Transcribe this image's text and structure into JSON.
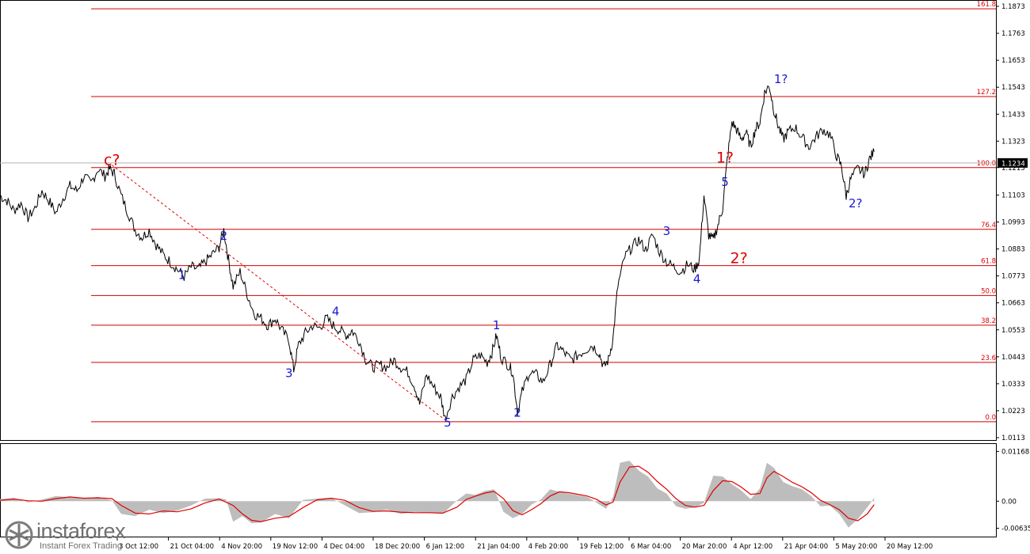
{
  "chart_data": [
    {
      "type": "line",
      "symbol_note": "",
      "current_price_label": "1.1234",
      "y_ticks": [
        "1.1873",
        "1.1763",
        "1.1653",
        "1.1543",
        "1.1433",
        "1.1323",
        "1.1215",
        "1.1103",
        "1.0993",
        "1.0883",
        "1.0773",
        "1.0663",
        "1.0553",
        "1.0443",
        "1.0333",
        "1.0223",
        "1.0113"
      ],
      "ylim": [
        1.0113,
        1.1873
      ],
      "x_ticks": [
        "3 Oct 12:00",
        "21 Oct 04:00",
        "4 Nov 20:00",
        "19 Nov 12:00",
        "4 Dec 04:00",
        "18 Dec 20:00",
        "6 Jan 12:00",
        "21 Jan 04:00",
        "4 Feb 20:00",
        "19 Feb 12:00",
        "6 Mar 04:00",
        "20 Mar 20:00",
        "4 Apr 12:00",
        "21 Apr 04:00",
        "5 May 20:00",
        "20 May 12:00"
      ],
      "fib_levels": [
        {
          "label": "161.8",
          "value": 1.1863
        },
        {
          "label": "127.2",
          "value": 1.1505
        },
        {
          "label": "100.0",
          "value": 1.1215
        },
        {
          "label": "76.4",
          "value": 1.0963
        },
        {
          "label": "61.8",
          "value": 1.0815
        },
        {
          "label": "50.0",
          "value": 1.0693
        },
        {
          "label": "38.2",
          "value": 1.0572
        },
        {
          "label": "23.6",
          "value": 1.042
        },
        {
          "label": "0.0",
          "value": 1.0178
        }
      ],
      "price_points": [
        [
          0,
          1.11
        ],
        [
          3,
          1.108
        ],
        [
          6,
          1.104
        ],
        [
          9,
          1.107
        ],
        [
          12,
          1.101
        ],
        [
          15,
          1.105
        ],
        [
          18,
          1.112
        ],
        [
          21,
          1.108
        ],
        [
          24,
          1.103
        ],
        [
          27,
          1.109
        ],
        [
          30,
          1.114
        ],
        [
          33,
          1.112
        ],
        [
          36,
          1.118
        ],
        [
          39,
          1.115
        ],
        [
          42,
          1.121
        ],
        [
          45,
          1.118
        ],
        [
          47,
          1.121
        ],
        [
          49,
          1.119
        ],
        [
          52,
          1.11
        ],
        [
          55,
          1.103
        ],
        [
          58,
          1.096
        ],
        [
          61,
          1.093
        ],
        [
          64,
          1.096
        ],
        [
          67,
          1.09
        ],
        [
          70,
          1.086
        ],
        [
          73,
          1.083
        ],
        [
          76,
          1.08
        ],
        [
          79,
          1.077
        ],
        [
          82,
          1.081
        ],
        [
          85,
          1.08
        ],
        [
          88,
          1.083
        ],
        [
          91,
          1.086
        ],
        [
          94,
          1.089
        ],
        [
          96,
          1.096
        ],
        [
          98,
          1.084
        ],
        [
          100,
          1.073
        ],
        [
          103,
          1.079
        ],
        [
          106,
          1.07
        ],
        [
          109,
          1.062
        ],
        [
          112,
          1.06
        ],
        [
          115,
          1.057
        ],
        [
          118,
          1.06
        ],
        [
          121,
          1.055
        ],
        [
          124,
          1.051
        ],
        [
          126,
          1.039
        ],
        [
          128,
          1.049
        ],
        [
          131,
          1.054
        ],
        [
          134,
          1.057
        ],
        [
          137,
          1.056
        ],
        [
          140,
          1.06
        ],
        [
          143,
          1.057
        ],
        [
          146,
          1.055
        ],
        [
          149,
          1.053
        ],
        [
          151,
          1.055
        ],
        [
          154,
          1.051
        ],
        [
          157,
          1.043
        ],
        [
          160,
          1.04
        ],
        [
          163,
          1.041
        ],
        [
          166,
          1.04
        ],
        [
          169,
          1.043
        ],
        [
          172,
          1.04
        ],
        [
          175,
          1.038
        ],
        [
          178,
          1.032
        ],
        [
          180,
          1.025
        ],
        [
          183,
          1.037
        ],
        [
          186,
          1.032
        ],
        [
          189,
          1.028
        ],
        [
          191,
          1.019
        ],
        [
          194,
          1.028
        ],
        [
          197,
          1.032
        ],
        [
          200,
          1.035
        ],
        [
          203,
          1.043
        ],
        [
          206,
          1.045
        ],
        [
          209,
          1.042
        ],
        [
          211,
          1.046
        ],
        [
          213,
          1.053
        ],
        [
          215,
          1.044
        ],
        [
          218,
          1.041
        ],
        [
          220,
          1.038
        ],
        [
          222,
          1.022
        ],
        [
          224,
          1.03
        ],
        [
          227,
          1.038
        ],
        [
          230,
          1.037
        ],
        [
          233,
          1.034
        ],
        [
          236,
          1.041
        ],
        [
          239,
          1.049
        ],
        [
          242,
          1.046
        ],
        [
          245,
          1.043
        ],
        [
          248,
          1.045
        ],
        [
          251,
          1.047
        ],
        [
          254,
          1.049
        ],
        [
          257,
          1.046
        ],
        [
          259,
          1.04
        ],
        [
          261,
          1.043
        ],
        [
          263,
          1.052
        ],
        [
          265,
          1.073
        ],
        [
          268,
          1.085
        ],
        [
          271,
          1.089
        ],
        [
          274,
          1.092
        ],
        [
          277,
          1.088
        ],
        [
          280,
          1.094
        ],
        [
          283,
          1.087
        ],
        [
          286,
          1.083
        ],
        [
          289,
          1.081
        ],
        [
          292,
          1.079
        ],
        [
          295,
          1.082
        ],
        [
          298,
          1.08
        ],
        [
          300,
          1.084
        ],
        [
          302,
          1.11
        ],
        [
          304,
          1.094
        ],
        [
          306,
          1.092
        ],
        [
          308,
          1.098
        ],
        [
          310,
          1.105
        ],
        [
          312,
          1.125
        ],
        [
          314,
          1.14
        ],
        [
          316,
          1.137
        ],
        [
          318,
          1.133
        ],
        [
          320,
          1.136
        ],
        [
          322,
          1.13
        ],
        [
          324,
          1.137
        ],
        [
          326,
          1.14
        ],
        [
          328,
          1.152
        ],
        [
          330,
          1.155
        ],
        [
          332,
          1.145
        ],
        [
          334,
          1.138
        ],
        [
          336,
          1.133
        ],
        [
          338,
          1.136
        ],
        [
          341,
          1.138
        ],
        [
          344,
          1.134
        ],
        [
          347,
          1.13
        ],
        [
          350,
          1.134
        ],
        [
          353,
          1.137
        ],
        [
          356,
          1.135
        ],
        [
          359,
          1.126
        ],
        [
          361,
          1.122
        ],
        [
          363,
          1.11
        ],
        [
          365,
          1.117
        ],
        [
          368,
          1.121
        ],
        [
          371,
          1.119
        ],
        [
          373,
          1.125
        ],
        [
          375,
          1.128
        ]
      ],
      "wave_labels": [
        {
          "text": "c?",
          "color": "red",
          "x": 48,
          "y": 1.1225
        },
        {
          "text": "1",
          "color": "blue",
          "x": 78,
          "y": 1.076
        },
        {
          "text": "2",
          "color": "blue",
          "x": 96,
          "y": 1.092
        },
        {
          "text": "3",
          "color": "blue",
          "x": 124,
          "y": 1.036
        },
        {
          "text": "4",
          "color": "blue",
          "x": 144,
          "y": 1.0612
        },
        {
          "text": "5",
          "color": "blue",
          "x": 192,
          "y": 1.0158
        },
        {
          "text": "1",
          "color": "blue",
          "x": 213,
          "y": 1.0555
        },
        {
          "text": "2",
          "color": "blue",
          "x": 222,
          "y": 1.0198
        },
        {
          "text": "3",
          "color": "blue",
          "x": 286,
          "y": 1.094
        },
        {
          "text": "4",
          "color": "blue",
          "x": 299,
          "y": 1.0745
        },
        {
          "text": "5",
          "color": "blue",
          "x": 311,
          "y": 1.114
        },
        {
          "text": "1?",
          "color": "red",
          "x": 311,
          "y": 1.1235
        },
        {
          "text": "2?",
          "color": "red",
          "x": 317,
          "y": 1.0825
        },
        {
          "text": "1?",
          "color": "blue",
          "x": 335,
          "y": 1.156
        },
        {
          "text": "2?",
          "color": "blue",
          "x": 367,
          "y": 1.1052
        }
      ],
      "trendline": {
        "from": [
          48,
          1.1225
        ],
        "to": [
          192,
          1.0178
        ]
      },
      "x_domain": [
        0,
        380
      ]
    },
    {
      "type": "area",
      "y_ticks": [
        "0.01168",
        "0.00",
        "-0.00635"
      ],
      "ylim": [
        -0.0072,
        0.0125
      ],
      "histogram": [
        [
          0,
          0.0005
        ],
        [
          6,
          0.0008
        ],
        [
          12,
          -0.0003
        ],
        [
          18,
          0.0004
        ],
        [
          24,
          0.0012
        ],
        [
          30,
          0.0009
        ],
        [
          36,
          0.0006
        ],
        [
          42,
          0.001
        ],
        [
          48,
          0.0002
        ],
        [
          52,
          -0.003
        ],
        [
          58,
          -0.0035
        ],
        [
          64,
          -0.002
        ],
        [
          70,
          -0.0028
        ],
        [
          76,
          -0.0022
        ],
        [
          82,
          -0.001
        ],
        [
          88,
          0.0006
        ],
        [
          94,
          0.0007
        ],
        [
          97,
          0.0004
        ],
        [
          100,
          -0.0048
        ],
        [
          104,
          -0.0035
        ],
        [
          108,
          -0.0052
        ],
        [
          112,
          -0.005
        ],
        [
          118,
          -0.003
        ],
        [
          124,
          -0.004
        ],
        [
          130,
          0.0003
        ],
        [
          136,
          0.0006
        ],
        [
          142,
          0.0008
        ],
        [
          148,
          -0.001
        ],
        [
          154,
          -0.0028
        ],
        [
          160,
          -0.0026
        ],
        [
          166,
          -0.002
        ],
        [
          172,
          -0.003
        ],
        [
          178,
          -0.0025
        ],
        [
          184,
          -0.0028
        ],
        [
          190,
          -0.003
        ],
        [
          196,
          0.0002
        ],
        [
          200,
          0.0018
        ],
        [
          204,
          0.0015
        ],
        [
          208,
          0.0024
        ],
        [
          212,
          0.0028
        ],
        [
          216,
          -0.0025
        ],
        [
          220,
          -0.004
        ],
        [
          224,
          -0.003
        ],
        [
          228,
          -0.0008
        ],
        [
          232,
          0.0004
        ],
        [
          236,
          0.0028
        ],
        [
          240,
          0.0022
        ],
        [
          244,
          0.0018
        ],
        [
          248,
          0.0014
        ],
        [
          252,
          0.001
        ],
        [
          256,
          -0.0004
        ],
        [
          260,
          -0.0018
        ],
        [
          263,
          0.001
        ],
        [
          266,
          0.009
        ],
        [
          270,
          0.0095
        ],
        [
          274,
          0.0072
        ],
        [
          278,
          0.0058
        ],
        [
          282,
          0.003
        ],
        [
          286,
          0.0018
        ],
        [
          290,
          -0.0012
        ],
        [
          294,
          -0.0018
        ],
        [
          298,
          -0.0015
        ],
        [
          302,
          -0.0004
        ],
        [
          306,
          0.006
        ],
        [
          310,
          0.0058
        ],
        [
          314,
          0.004
        ],
        [
          318,
          0.0025
        ],
        [
          322,
          0.0005
        ],
        [
          326,
          0.003
        ],
        [
          329,
          0.009
        ],
        [
          332,
          0.0078
        ],
        [
          336,
          0.0045
        ],
        [
          340,
          0.0035
        ],
        [
          344,
          0.0028
        ],
        [
          348,
          0.0012
        ],
        [
          352,
          -0.0012
        ],
        [
          356,
          -0.001
        ],
        [
          360,
          -0.003
        ],
        [
          364,
          -0.0062
        ],
        [
          368,
          -0.0042
        ],
        [
          372,
          -0.0015
        ],
        [
          375,
          0.0008
        ]
      ],
      "signal": [
        [
          0,
          0.0002
        ],
        [
          6,
          0.0005
        ],
        [
          12,
          0.0001
        ],
        [
          18,
          0.0
        ],
        [
          24,
          0.0006
        ],
        [
          30,
          0.001
        ],
        [
          36,
          0.0007
        ],
        [
          42,
          0.0008
        ],
        [
          48,
          0.0006
        ],
        [
          52,
          -0.001
        ],
        [
          58,
          -0.0028
        ],
        [
          64,
          -0.003
        ],
        [
          70,
          -0.0023
        ],
        [
          76,
          -0.0025
        ],
        [
          82,
          -0.0018
        ],
        [
          88,
          -0.0004
        ],
        [
          94,
          0.0005
        ],
        [
          100,
          -0.001
        ],
        [
          104,
          -0.003
        ],
        [
          108,
          -0.0045
        ],
        [
          112,
          -0.0048
        ],
        [
          118,
          -0.004
        ],
        [
          124,
          -0.0036
        ],
        [
          130,
          -0.0015
        ],
        [
          136,
          0.0003
        ],
        [
          142,
          0.0007
        ],
        [
          148,
          0.0002
        ],
        [
          154,
          -0.0015
        ],
        [
          160,
          -0.0024
        ],
        [
          166,
          -0.0023
        ],
        [
          172,
          -0.0026
        ],
        [
          178,
          -0.0027
        ],
        [
          184,
          -0.0027
        ],
        [
          190,
          -0.0028
        ],
        [
          196,
          -0.0014
        ],
        [
          200,
          0.0004
        ],
        [
          204,
          0.0012
        ],
        [
          208,
          0.0019
        ],
        [
          212,
          0.0023
        ],
        [
          216,
          0.0006
        ],
        [
          220,
          -0.0022
        ],
        [
          224,
          -0.0032
        ],
        [
          228,
          -0.002
        ],
        [
          232,
          -0.0006
        ],
        [
          236,
          0.0012
        ],
        [
          240,
          0.0022
        ],
        [
          244,
          0.002
        ],
        [
          248,
          0.0016
        ],
        [
          252,
          0.0012
        ],
        [
          256,
          0.0004
        ],
        [
          260,
          -0.0009
        ],
        [
          263,
          -0.0002
        ],
        [
          266,
          0.0045
        ],
        [
          270,
          0.008
        ],
        [
          274,
          0.0082
        ],
        [
          278,
          0.0068
        ],
        [
          282,
          0.0046
        ],
        [
          286,
          0.0028
        ],
        [
          290,
          0.0006
        ],
        [
          294,
          -0.001
        ],
        [
          298,
          -0.0014
        ],
        [
          302,
          -0.001
        ],
        [
          306,
          0.0025
        ],
        [
          310,
          0.0048
        ],
        [
          314,
          0.0046
        ],
        [
          318,
          0.0033
        ],
        [
          322,
          0.0016
        ],
        [
          326,
          0.0018
        ],
        [
          329,
          0.0055
        ],
        [
          332,
          0.007
        ],
        [
          336,
          0.0058
        ],
        [
          340,
          0.0044
        ],
        [
          344,
          0.0034
        ],
        [
          348,
          0.002
        ],
        [
          352,
          0.0002
        ],
        [
          356,
          -0.0008
        ],
        [
          360,
          -0.002
        ],
        [
          364,
          -0.004
        ],
        [
          368,
          -0.0046
        ],
        [
          372,
          -0.003
        ],
        [
          375,
          -0.0008
        ]
      ],
      "x_domain": [
        0,
        380
      ]
    }
  ],
  "watermark": {
    "brand": "instaforex",
    "tagline": "Instant Forex Trading"
  }
}
